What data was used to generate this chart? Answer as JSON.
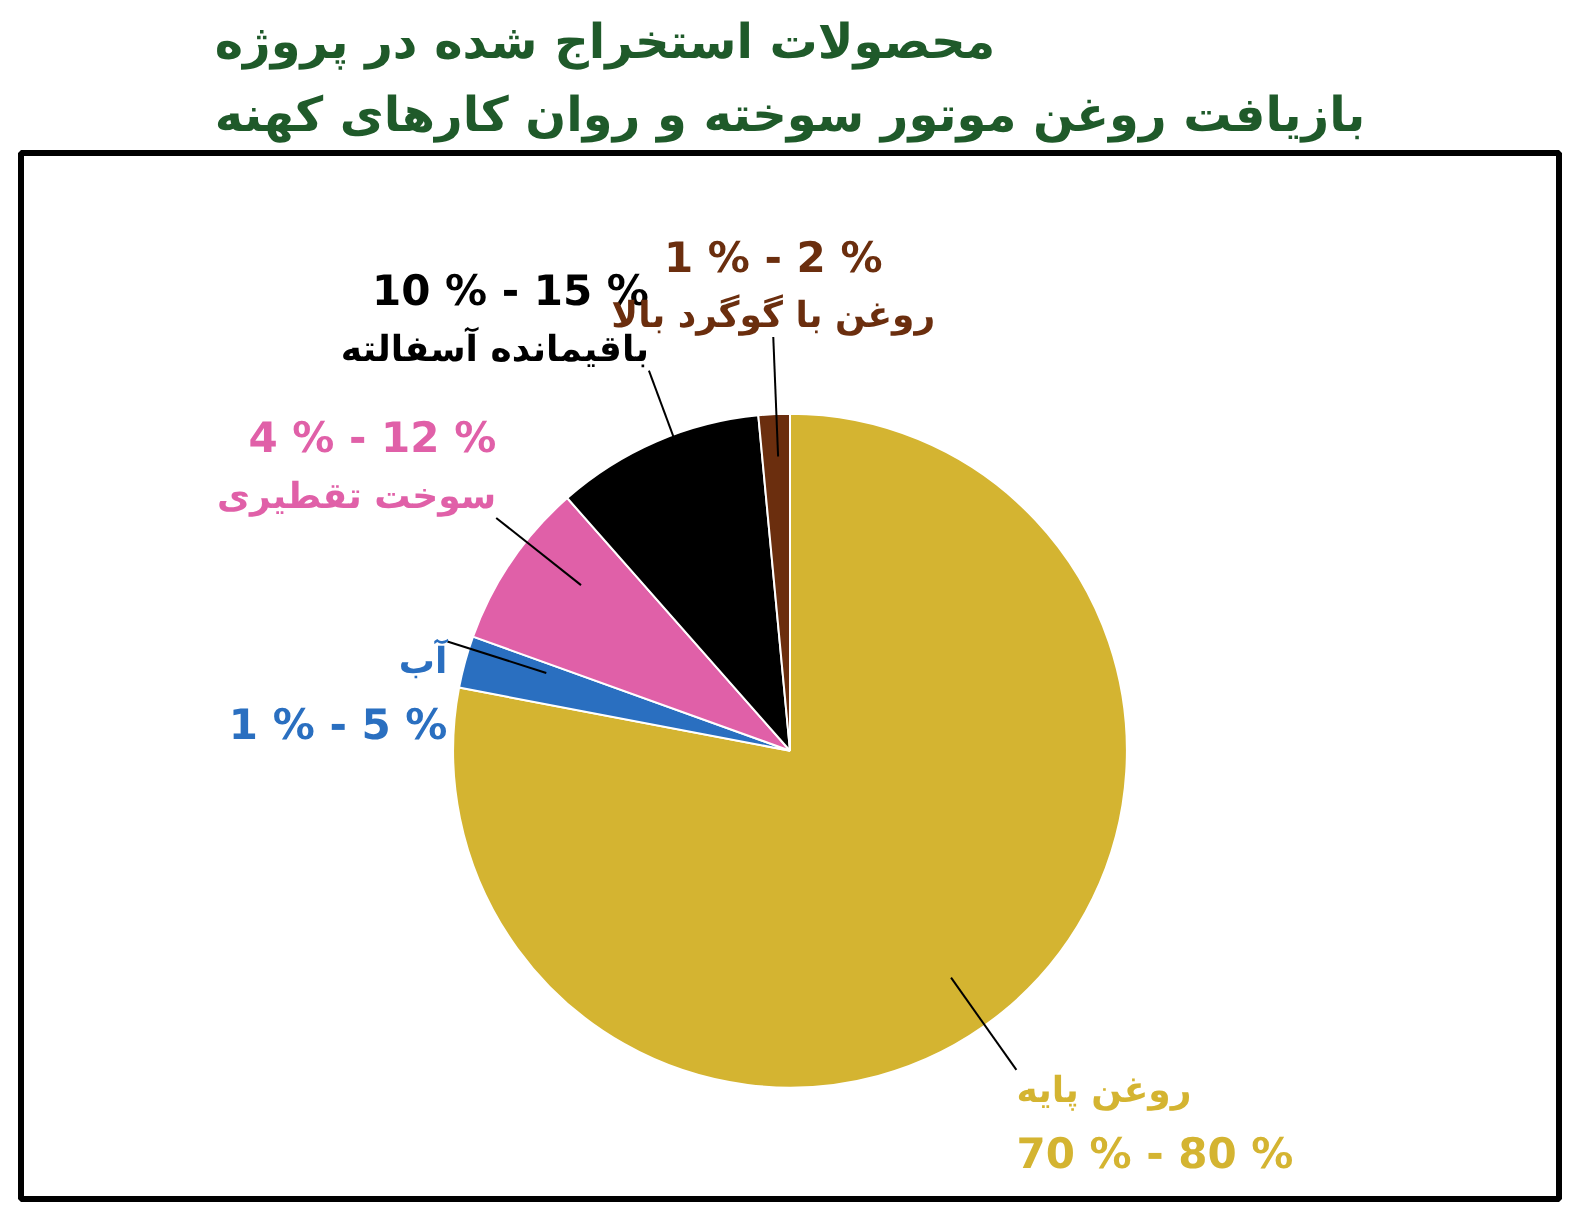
{
  "chart_data": {
    "type": "pie",
    "title": "محصولات استخراج شده در پروژه\nبازیافت روغن موتور سوخته و روان کارهای کهنه",
    "categories": [
      "روغن پایه",
      "آب",
      "سوخت تقطیری",
      "باقیمانده آسفالته",
      "روغن با گوگرد بالا"
    ],
    "values": [
      78,
      2.5,
      8,
      10,
      1.5
    ],
    "colors": [
      "#d4b431",
      "#2a6fc0",
      "#e060a8",
      "#000000",
      "#6b2e0e"
    ],
    "annotations": [
      "70 % - 80 %",
      "1 % - 5 %",
      "4 % - 12 %",
      "10 % - 15 %",
      "1 % - 2 %"
    ],
    "legend": false
  }
}
